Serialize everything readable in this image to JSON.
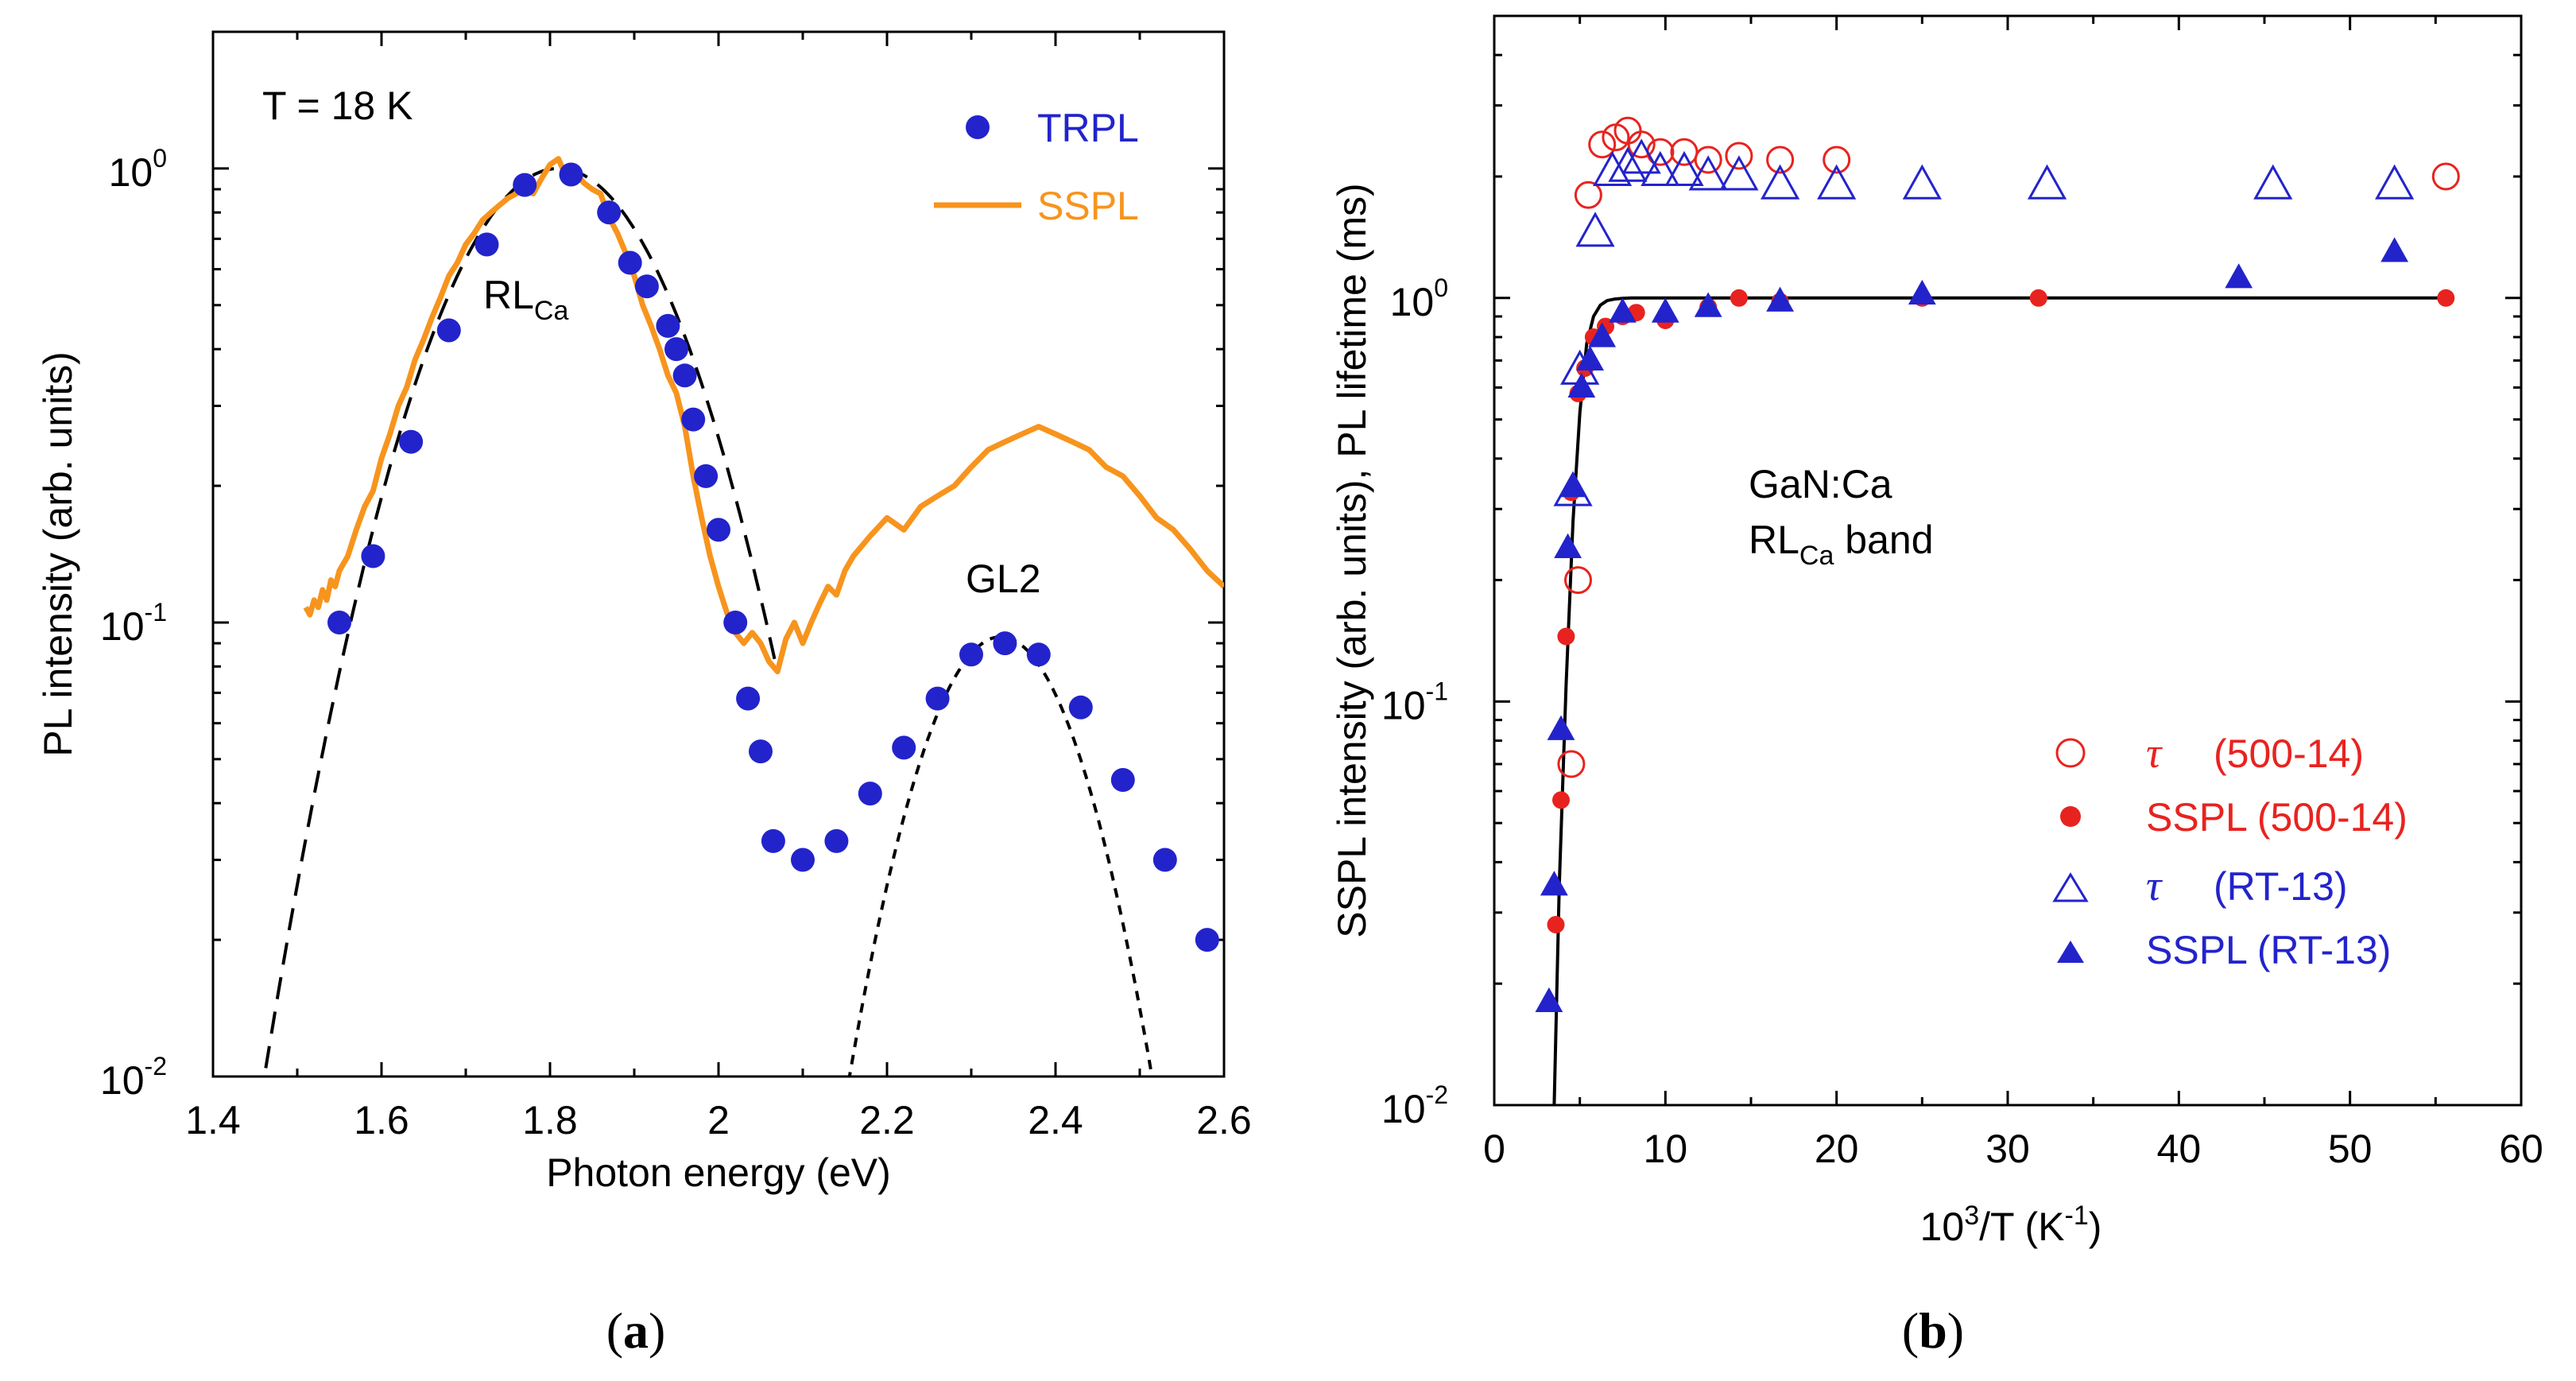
{
  "chart_data": [
    {
      "type": "scatter",
      "id": "a",
      "panel_label": "a",
      "xlabel": "Photon energy (eV)",
      "ylabel": "PL intensity (arb. units)",
      "xlim": [
        1.4,
        2.6
      ],
      "ylim": [
        0.01,
        2
      ],
      "yscale": "log",
      "xticks": [
        1.4,
        1.6,
        1.8,
        2.0,
        2.2,
        2.4,
        2.6
      ],
      "xtick_labels": [
        "1.4",
        "1.6",
        "1.8",
        "2",
        "2.2",
        "2.4",
        "2.6"
      ],
      "yticks": [
        0.01,
        0.1,
        1
      ],
      "ytick_labels": [
        {
          "base": "10",
          "exp": "-2"
        },
        {
          "base": "10",
          "exp": "-1"
        },
        {
          "base": "10",
          "exp": "0"
        }
      ],
      "annotations": {
        "temperature": "T = 18 K",
        "rl_main": "RL",
        "rl_sub": "Ca",
        "gl2": "GL2"
      },
      "legend": {
        "position": "top-right",
        "entries": [
          {
            "label": "TRPL",
            "color": "#2323cc"
          },
          {
            "label": "SSPL",
            "color": "#f7941d"
          }
        ]
      },
      "series": [
        {
          "name": "TRPL",
          "kind": "points",
          "color": "#2323cc",
          "x": [
            1.55,
            1.59,
            1.635,
            1.68,
            1.725,
            1.77,
            1.825,
            1.87,
            1.895,
            1.915,
            1.94,
            1.95,
            1.96,
            1.97,
            1.985,
            2.0,
            2.02,
            2.035,
            2.05,
            2.065,
            2.1,
            2.14,
            2.18,
            2.22,
            2.26,
            2.3,
            2.34,
            2.38,
            2.43,
            2.48,
            2.53,
            2.58
          ],
          "y": [
            0.1,
            0.14,
            0.25,
            0.44,
            0.68,
            0.92,
            0.97,
            0.8,
            0.62,
            0.55,
            0.45,
            0.4,
            0.35,
            0.28,
            0.21,
            0.16,
            0.1,
            0.068,
            0.052,
            0.033,
            0.03,
            0.033,
            0.042,
            0.053,
            0.068,
            0.085,
            0.09,
            0.085,
            0.065,
            0.045,
            0.03,
            0.02
          ]
        },
        {
          "name": "SSPL",
          "kind": "line",
          "color": "#f7941d",
          "x": [
            1.51,
            1.515,
            1.52,
            1.525,
            1.53,
            1.535,
            1.54,
            1.545,
            1.55,
            1.56,
            1.57,
            1.58,
            1.59,
            1.6,
            1.61,
            1.62,
            1.63,
            1.64,
            1.65,
            1.66,
            1.67,
            1.68,
            1.69,
            1.7,
            1.71,
            1.72,
            1.73,
            1.74,
            1.75,
            1.76,
            1.77,
            1.78,
            1.79,
            1.8,
            1.81,
            1.82,
            1.83,
            1.84,
            1.85,
            1.86,
            1.87,
            1.88,
            1.89,
            1.9,
            1.91,
            1.92,
            1.93,
            1.94,
            1.95,
            1.96,
            1.97,
            1.98,
            1.99,
            2.0,
            2.01,
            2.02,
            2.03,
            2.04,
            2.05,
            2.06,
            2.07,
            2.08,
            2.09,
            2.1,
            2.11,
            2.12,
            2.13,
            2.14,
            2.15,
            2.16,
            2.18,
            2.2,
            2.22,
            2.24,
            2.26,
            2.28,
            2.3,
            2.32,
            2.34,
            2.36,
            2.38,
            2.4,
            2.42,
            2.44,
            2.46,
            2.48,
            2.5,
            2.52,
            2.54,
            2.56,
            2.58,
            2.6
          ],
          "y": [
            0.108,
            0.104,
            0.112,
            0.108,
            0.118,
            0.112,
            0.124,
            0.12,
            0.13,
            0.14,
            0.16,
            0.18,
            0.195,
            0.23,
            0.26,
            0.3,
            0.33,
            0.38,
            0.42,
            0.47,
            0.52,
            0.58,
            0.62,
            0.68,
            0.72,
            0.77,
            0.8,
            0.83,
            0.86,
            0.88,
            0.91,
            0.88,
            0.95,
            1.02,
            1.05,
            0.95,
            0.98,
            0.93,
            0.9,
            0.88,
            0.78,
            0.72,
            0.65,
            0.58,
            0.5,
            0.45,
            0.4,
            0.35,
            0.32,
            0.27,
            0.21,
            0.17,
            0.14,
            0.12,
            0.105,
            0.095,
            0.09,
            0.095,
            0.09,
            0.082,
            0.078,
            0.092,
            0.1,
            0.09,
            0.1,
            0.11,
            0.12,
            0.115,
            0.13,
            0.14,
            0.155,
            0.17,
            0.16,
            0.18,
            0.19,
            0.2,
            0.22,
            0.24,
            0.25,
            0.26,
            0.27,
            0.26,
            0.25,
            0.24,
            0.22,
            0.21,
            0.19,
            0.17,
            0.16,
            0.145,
            0.13,
            0.12
          ]
        },
        {
          "name": "RL fit",
          "kind": "gaussian",
          "dash": "long",
          "amplitude": 1.0,
          "center": 1.81,
          "sigma": 0.115,
          "x_range": [
            1.45,
            2.07
          ]
        },
        {
          "name": "GL2 fit",
          "kind": "gaussian",
          "dash": "short",
          "amplitude": 0.093,
          "center": 2.335,
          "sigma": 0.085,
          "x_range": [
            2.1,
            2.525
          ]
        }
      ]
    },
    {
      "type": "scatter",
      "id": "b",
      "panel_label": "b",
      "xlabel": {
        "base": "10",
        "sup1": "3",
        "mid": "/T (K",
        "sup2": "-1",
        "end": ")"
      },
      "ylabel": "SSPL intensity (arb. units), PL lifetime (ms)",
      "xlim": [
        0,
        60
      ],
      "ylim": [
        0.01,
        5
      ],
      "yscale": "log",
      "xticks": [
        0,
        10,
        20,
        30,
        40,
        50,
        60
      ],
      "xtick_labels": [
        "0",
        "10",
        "20",
        "30",
        "40",
        "50",
        "60"
      ],
      "yticks": [
        0.01,
        0.1,
        1
      ],
      "ytick_labels": [
        {
          "base": "10",
          "exp": "-2"
        },
        {
          "base": "10",
          "exp": "-1"
        },
        {
          "base": "10",
          "exp": "0"
        }
      ],
      "annotations": {
        "sample": "GaN:Ca",
        "band_main": "RL",
        "band_sub": "Ca",
        "band_end": " band"
      },
      "legend": {
        "position": "bottom-right",
        "entries": [
          {
            "symbol": "τ",
            "label": "(500-14)",
            "marker": "open-circle",
            "color": "#e8231f"
          },
          {
            "label": "SSPL (500-14)",
            "marker": "filled-circle",
            "color": "#e8231f"
          },
          {
            "symbol": "τ",
            "label": "(RT-13)",
            "marker": "open-triangle",
            "color": "#2323cc"
          },
          {
            "label": "SSPL (RT-13)",
            "marker": "filled-triangle",
            "color": "#2323cc"
          }
        ]
      },
      "series": [
        {
          "name": "τ (500-14)",
          "marker": "open-circle",
          "color": "#e8231f",
          "x": [
            4.5,
            4.9,
            5.5,
            6.3,
            7.1,
            7.8,
            8.6,
            9.7,
            11.1,
            12.5,
            14.3,
            16.7,
            20.0,
            55.6
          ],
          "y": [
            0.07,
            0.2,
            1.8,
            2.4,
            2.5,
            2.6,
            2.4,
            2.3,
            2.3,
            2.2,
            2.25,
            2.2,
            2.2,
            2.0
          ]
        },
        {
          "name": "SSPL (500-14)",
          "marker": "filled-circle",
          "color": "#e8231f",
          "x": [
            3.6,
            3.9,
            4.2,
            4.5,
            4.9,
            5.3,
            5.8,
            6.5,
            7.5,
            8.3,
            10.0,
            12.5,
            14.3,
            16.7,
            25.0,
            31.8,
            55.6
          ],
          "y": [
            0.028,
            0.057,
            0.145,
            0.33,
            0.58,
            0.67,
            0.8,
            0.85,
            0.9,
            0.92,
            0.88,
            0.95,
            1.0,
            0.98,
            1.0,
            1.0,
            1.0
          ]
        },
        {
          "name": "τ (RT-13)",
          "marker": "open-triangle",
          "color": "#2323cc",
          "x": [
            4.6,
            5.0,
            5.9,
            6.9,
            7.8,
            8.6,
            9.7,
            11.1,
            12.5,
            14.3,
            16.7,
            20.0,
            25.0,
            32.3,
            45.5,
            52.6
          ],
          "y": [
            0.33,
            0.66,
            1.45,
            2.05,
            2.1,
            2.2,
            2.05,
            2.05,
            2.0,
            2.0,
            1.9,
            1.9,
            1.9,
            1.9,
            1.9,
            1.9
          ]
        },
        {
          "name": "SSPL (RT-13)",
          "marker": "filled-triangle",
          "color": "#2323cc",
          "x": [
            3.2,
            3.5,
            3.9,
            4.3,
            4.6,
            5.1,
            5.6,
            6.3,
            7.5,
            10.0,
            12.5,
            16.7,
            25.0,
            43.5,
            52.6
          ],
          "y": [
            0.018,
            0.035,
            0.085,
            0.24,
            0.34,
            0.6,
            0.7,
            0.8,
            0.92,
            0.92,
            0.95,
            0.98,
            1.02,
            1.12,
            1.3
          ]
        },
        {
          "name": "fit",
          "kind": "line",
          "color": "#000000",
          "x": [
            3.5,
            3.8,
            4.2,
            4.6,
            5.0,
            5.4,
            5.8,
            6.2,
            6.6,
            7.0,
            7.5,
            8.0,
            9.0,
            10.0,
            15.0,
            20.0,
            30.0,
            40.0,
            50.0,
            55.9
          ],
          "y": [
            0.01,
            0.035,
            0.11,
            0.28,
            0.52,
            0.77,
            0.9,
            0.96,
            0.985,
            0.993,
            0.998,
            1.0,
            1.0,
            1.0,
            1.0,
            1.0,
            1.0,
            1.0,
            1.0,
            1.0
          ]
        }
      ]
    }
  ]
}
